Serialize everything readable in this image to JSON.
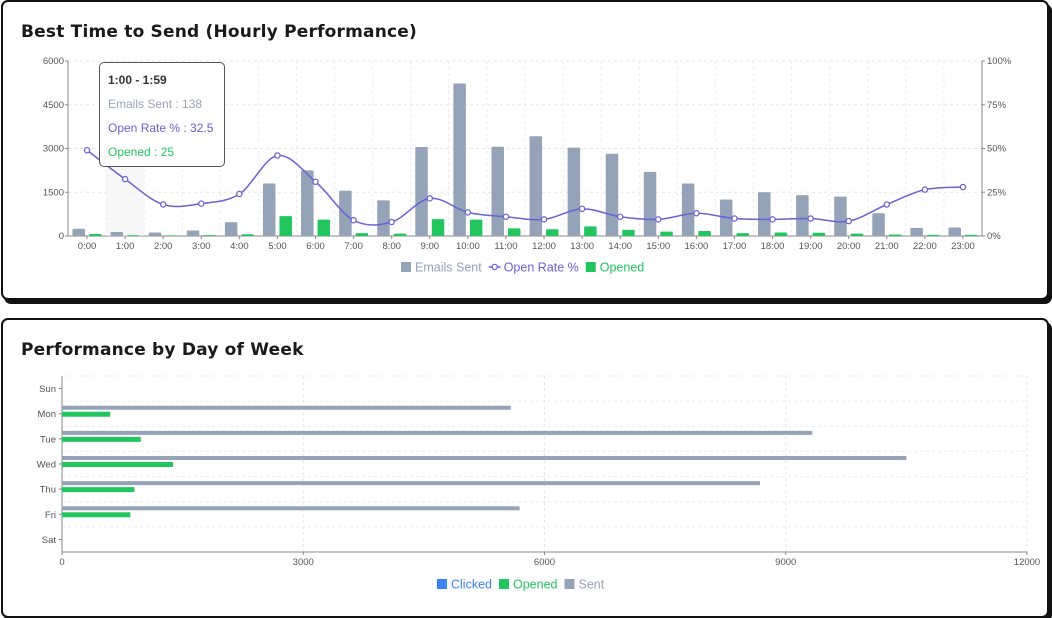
{
  "hourly": {
    "title": "Best Time to Send (Hourly Performance)",
    "colors": {
      "sent": "#94a3b8",
      "rate": "#6a61d6",
      "opened": "#22c55e"
    },
    "chart_data": {
      "type": "bar",
      "title": "Best Time to Send (Hourly Performance)",
      "categories": [
        "0:00",
        "1:00",
        "2:00",
        "3:00",
        "4:00",
        "5:00",
        "6:00",
        "7:00",
        "8:00",
        "9:00",
        "10:00",
        "11:00",
        "12:00",
        "13:00",
        "14:00",
        "15:00",
        "16:00",
        "17:00",
        "18:00",
        "19:00",
        "20:00",
        "21:00",
        "22:00",
        "23:00"
      ],
      "series": [
        {
          "name": "Emails Sent",
          "kind": "bar",
          "axis": "left",
          "values": [
            250,
            138,
            120,
            190,
            470,
            1800,
            2250,
            1550,
            1220,
            3050,
            5230,
            3060,
            3420,
            3030,
            2820,
            2200,
            1800,
            1250,
            1500,
            1400,
            1350,
            780,
            280,
            290
          ]
        },
        {
          "name": "Open Rate %",
          "kind": "line",
          "axis": "right",
          "values": [
            49,
            32.5,
            18,
            18.5,
            24,
            46,
            31,
            9,
            8,
            21.5,
            13.5,
            11,
            9.5,
            15.5,
            11,
            9.5,
            13,
            10,
            9.5,
            10,
            8.5,
            18,
            26.5,
            28
          ]
        },
        {
          "name": "Opened",
          "kind": "bar",
          "axis": "left",
          "values": [
            70,
            25,
            20,
            30,
            60,
            680,
            560,
            100,
            80,
            580,
            560,
            260,
            230,
            330,
            210,
            150,
            170,
            100,
            120,
            110,
            80,
            50,
            40,
            40
          ]
        }
      ],
      "yLeft": {
        "min": 0,
        "max": 6000,
        "ticks": [
          "0",
          "1500",
          "3000",
          "4500",
          "6000"
        ]
      },
      "yRight": {
        "min": 0,
        "max": 100,
        "ticks": [
          "0%",
          "25%",
          "50%",
          "75%",
          "100%"
        ]
      },
      "legend": [
        "Emails Sent",
        "Open Rate %",
        "Opened"
      ],
      "legend_position": "bottom"
    },
    "tooltip": {
      "title": "1:00 - 1:59",
      "sent": "Emails Sent : 138",
      "rate": "Open Rate % : 32.5",
      "opened": "Opened : 25"
    }
  },
  "weekly": {
    "title": "Performance by Day of Week",
    "colors": {
      "clicked": "#3b82f6",
      "opened": "#22c55e",
      "sent": "#94a3b8"
    },
    "chart_data": {
      "type": "bar",
      "orientation": "horizontal",
      "title": "Performance by Day of Week",
      "categories": [
        "Sun",
        "Mon",
        "Tue",
        "Wed",
        "Thu",
        "Fri",
        "Sat"
      ],
      "series": [
        {
          "name": "Clicked",
          "values": [
            0,
            0,
            0,
            0,
            0,
            0,
            0
          ]
        },
        {
          "name": "Opened",
          "values": [
            0,
            600,
            980,
            1380,
            900,
            850,
            0
          ]
        },
        {
          "name": "Sent",
          "values": [
            0,
            5580,
            9330,
            10500,
            8680,
            5690,
            0
          ]
        }
      ],
      "xlim": [
        0,
        12000
      ],
      "x_ticks": [
        "0",
        "3000",
        "6000",
        "9000",
        "12000"
      ],
      "legend": [
        "Clicked",
        "Opened",
        "Sent"
      ],
      "legend_position": "bottom"
    }
  }
}
